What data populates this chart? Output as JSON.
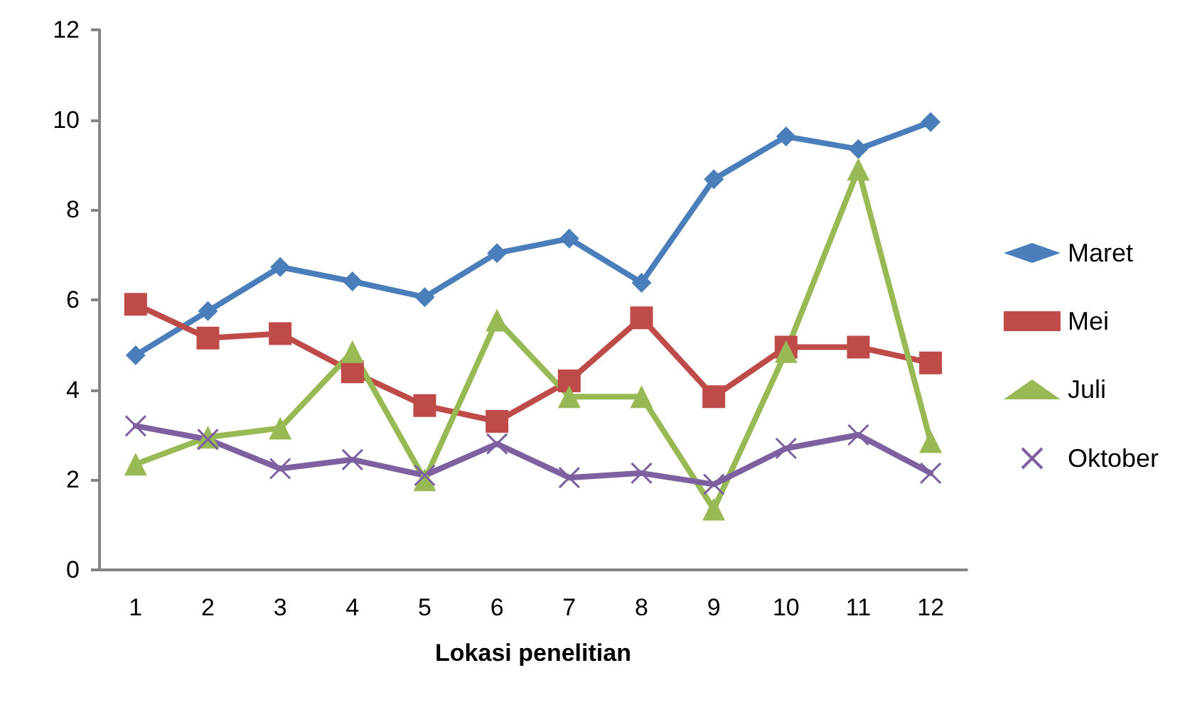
{
  "chart_data": {
    "type": "line",
    "xlabel": "Lokasi penelitian",
    "categories": [
      "1",
      "2",
      "3",
      "4",
      "5",
      "6",
      "7",
      "8",
      "9",
      "10",
      "11",
      "12"
    ],
    "ylim": [
      0,
      12
    ],
    "yticks": [
      0,
      2,
      4,
      6,
      8,
      10,
      12
    ],
    "grid": false,
    "legend": "right",
    "line_style": "solid",
    "series": [
      {
        "name": "Maret",
        "color": "#4a7ebb",
        "marker": "diamond",
        "values": [
          4.77,
          5.75,
          6.73,
          6.41,
          6.06,
          7.04,
          7.36,
          6.38,
          8.68,
          9.63,
          9.35,
          9.95
        ]
      },
      {
        "name": "Mei",
        "color": "#be4b48",
        "marker": "square",
        "values": [
          5.9,
          5.15,
          5.25,
          4.4,
          3.65,
          3.3,
          4.2,
          5.6,
          3.85,
          4.95,
          4.95,
          4.6
        ]
      },
      {
        "name": "Juli",
        "color": "#98b954",
        "marker": "triangle",
        "values": [
          2.35,
          2.95,
          3.15,
          4.85,
          2.0,
          5.55,
          3.85,
          3.85,
          1.35,
          4.85,
          8.9,
          2.85
        ]
      },
      {
        "name": "Oktober",
        "color": "#7d60a0",
        "marker": "cross",
        "values": [
          3.2,
          2.9,
          2.25,
          2.45,
          2.1,
          2.8,
          2.05,
          2.15,
          1.9,
          2.7,
          3.0,
          2.15
        ]
      }
    ]
  }
}
